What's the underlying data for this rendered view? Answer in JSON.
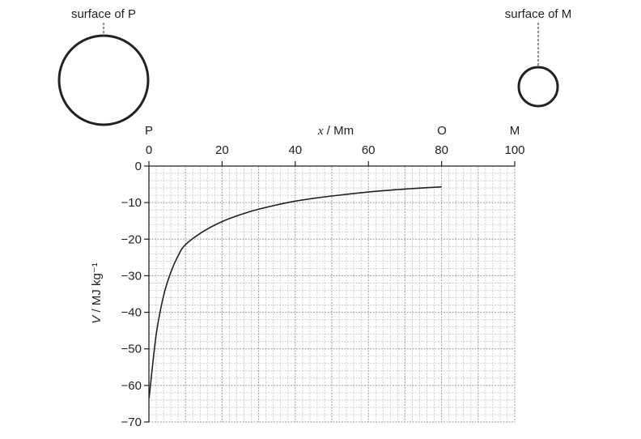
{
  "planet_p": {
    "label": "surface of P"
  },
  "moon_m": {
    "label": "surface of M"
  },
  "markers": {
    "p": "P",
    "o": "O",
    "m": "M"
  },
  "chart_data": {
    "type": "line",
    "xlabel": {
      "var": "x",
      "unit": " / Mm"
    },
    "ylabel": {
      "var": "V",
      "unit": " / MJ kg⁻¹"
    },
    "xlim": [
      0,
      100
    ],
    "ylim": [
      -70,
      0
    ],
    "x_ticks": [
      "0",
      "20",
      "40",
      "60",
      "80",
      "100"
    ],
    "y_ticks": [
      "0",
      "−10",
      "−20",
      "−30",
      "−40",
      "−50",
      "−60",
      "−70"
    ],
    "grid": true,
    "series": [
      {
        "x": [
          0.05,
          2,
          4,
          6,
          8,
          10,
          15,
          20,
          25,
          30,
          40,
          50,
          60,
          70,
          80
        ],
        "y": [
          -63.5,
          -46,
          -35.5,
          -29,
          -24.5,
          -21.5,
          -17.8,
          -15.2,
          -13.3,
          -11.8,
          -9.6,
          -8.2,
          -7.1,
          -6.3,
          -5.7
        ]
      }
    ]
  }
}
